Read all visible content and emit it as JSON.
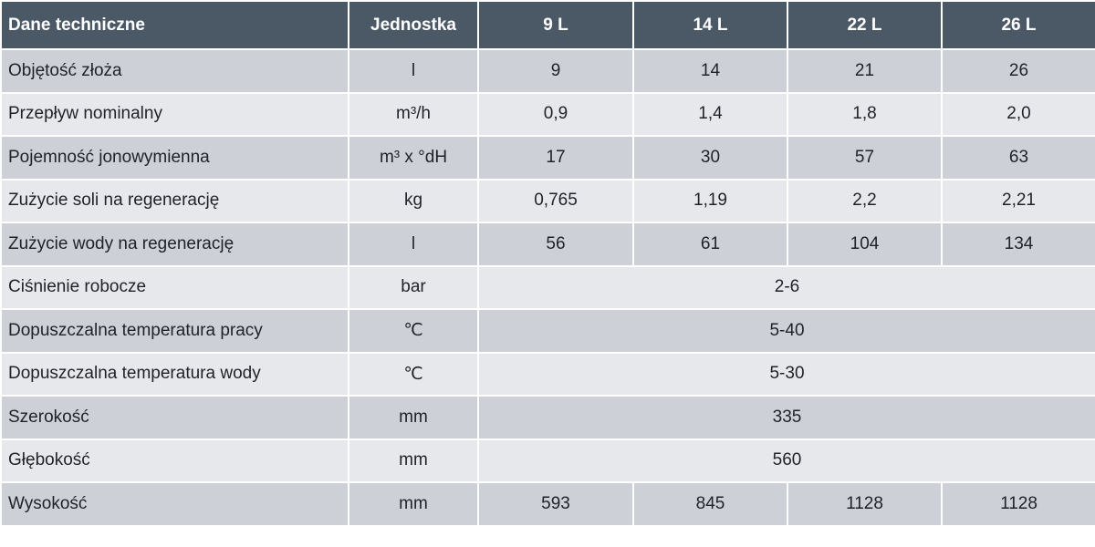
{
  "table": {
    "header": [
      "Dane techniczne",
      "Jednostka",
      "9 L",
      "14 L",
      "22 L",
      "26 L"
    ],
    "rows": [
      [
        "Objętość złoża",
        "l",
        "9",
        "14",
        "21",
        "26"
      ],
      [
        "Przepływ nominalny",
        "m³/h",
        "0,9",
        "1,4",
        "1,8",
        "2,0"
      ],
      [
        "Pojemność jonowymienna",
        "m³ x °dH",
        "17",
        "30",
        "57",
        "63"
      ],
      [
        "Zużycie soli na regenerację",
        "kg",
        "0,765",
        "1,19",
        "2,2",
        "2,21"
      ],
      [
        "Zużycie wody na regenerację",
        "l",
        "56",
        "61",
        "104",
        "134"
      ],
      [
        "Ciśnienie robocze",
        "bar",
        "2-6"
      ],
      [
        "Dopuszczalna temperatura pracy",
        "℃",
        "5-40"
      ],
      [
        "Dopuszczalna temperatura wody",
        "℃",
        "5-30"
      ],
      [
        "Szerokość",
        "mm",
        "335"
      ],
      [
        "Głębokość",
        "mm",
        "560"
      ],
      [
        "Wysokość",
        "mm",
        "593",
        "845",
        "1128",
        "1128"
      ]
    ]
  }
}
